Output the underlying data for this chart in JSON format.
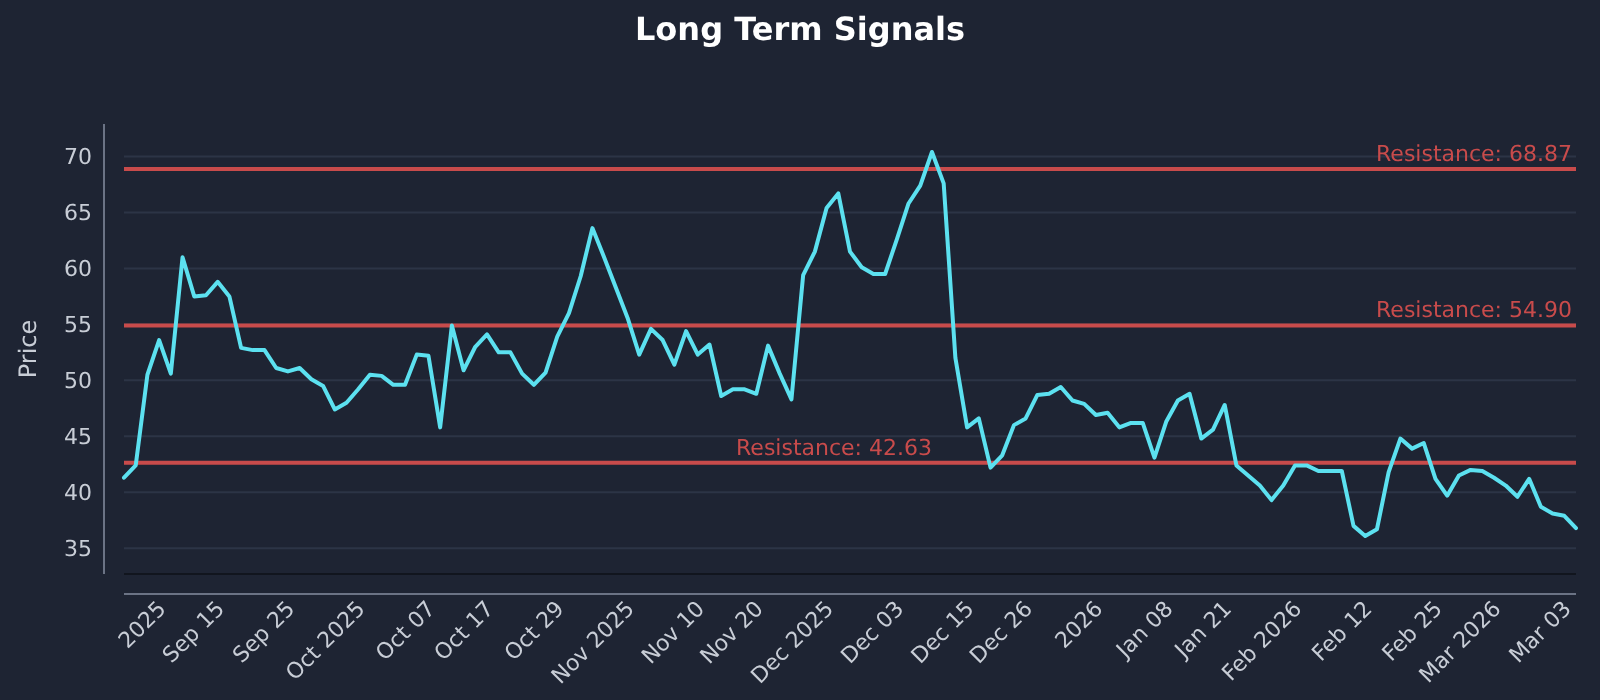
{
  "chart_data": {
    "type": "line",
    "title": "Long Term Signals",
    "ylabel": "Price",
    "categories": [
      null,
      null,
      null,
      "2025",
      null,
      null,
      null,
      null,
      "Sep 15",
      null,
      null,
      null,
      null,
      null,
      "Sep 25",
      null,
      null,
      null,
      null,
      null,
      "Oct 2025",
      null,
      null,
      null,
      null,
      null,
      "Oct 07",
      null,
      null,
      null,
      null,
      "Oct 17",
      null,
      null,
      null,
      null,
      null,
      "Oct 29",
      null,
      null,
      null,
      null,
      null,
      "Nov 2025",
      null,
      null,
      null,
      null,
      null,
      "Nov 10",
      null,
      null,
      null,
      null,
      "Nov 20",
      null,
      null,
      null,
      null,
      null,
      "Dec 2025",
      null,
      null,
      null,
      null,
      null,
      "Dec 03",
      null,
      null,
      null,
      null,
      null,
      "Dec 15",
      null,
      null,
      null,
      null,
      "Dec 26",
      null,
      null,
      null,
      null,
      null,
      "2026",
      null,
      null,
      null,
      null,
      null,
      "Jan 08",
      null,
      null,
      null,
      null,
      "Jan 21",
      null,
      null,
      null,
      null,
      null,
      "Feb 2026",
      null,
      null,
      null,
      null,
      null,
      "Feb 12",
      null,
      null,
      null,
      null,
      null,
      "Feb 25",
      null,
      null,
      null,
      null,
      "Mar 2026",
      null,
      null,
      null,
      null,
      null,
      "Mar 03",
      null
    ],
    "series": [
      {
        "color": "#5ce1f0",
        "values": [
          41.3,
          42.4,
          50.5,
          53.6,
          50.6,
          61,
          57.5,
          57.6,
          58.8,
          57.5,
          52.9,
          52.7,
          52.7,
          51.1,
          50.8,
          51.1,
          50.1,
          49.5,
          47.4,
          48,
          49.2,
          50.5,
          50.4,
          49.6,
          49.6,
          52.3,
          52.2,
          45.8,
          54.9,
          50.9,
          53,
          54.1,
          52.5,
          52.5,
          50.6,
          49.6,
          50.7,
          53.9,
          56,
          59.3,
          63.6,
          61,
          58.3,
          55.6,
          52.3,
          54.6,
          53.6,
          51.4,
          54.4,
          52.3,
          53.2,
          48.6,
          49.2,
          49.2,
          48.8,
          53.1,
          50.6,
          48.3,
          59.4,
          61.5,
          65.4,
          66.7,
          61.5,
          60.1,
          59.5,
          59.5,
          62.6,
          65.8,
          67.4,
          70.4,
          67.6,
          52,
          45.8,
          46.6,
          42.2,
          43.3,
          46,
          46.6,
          48.7,
          48.8,
          49.4,
          48.2,
          47.9,
          46.9,
          47.1,
          45.8,
          46.2,
          46.2,
          43.1,
          46.3,
          48.2,
          48.8,
          44.8,
          45.6,
          47.8,
          42.4,
          41.5,
          40.6,
          39.3,
          40.6,
          42.4,
          42.4,
          41.9,
          41.9,
          41.9,
          37,
          36.1,
          36.7,
          41.8,
          44.8,
          43.9,
          44.4,
          41.2,
          39.7,
          41.5,
          42,
          41.9,
          41.3,
          40.6,
          39.6,
          41.2,
          38.7,
          38.1,
          37.9,
          36.8
        ]
      }
    ],
    "ylim": [
      32.7,
      72.9
    ],
    "yticks": [
      35,
      40,
      45,
      50,
      55,
      60,
      65,
      70
    ],
    "grid": "y",
    "ref_lines": [
      {
        "axis": "y",
        "value": 68.87,
        "label": "Resistance: 68.87",
        "color": "#c84b4b"
      },
      {
        "axis": "y",
        "value": 54.9,
        "label": "Resistance: 54.90",
        "color": "#c84b4b"
      },
      {
        "axis": "y",
        "value": 42.63,
        "label": "Resistance: 42.63",
        "color": "#c84b4b"
      }
    ]
  }
}
